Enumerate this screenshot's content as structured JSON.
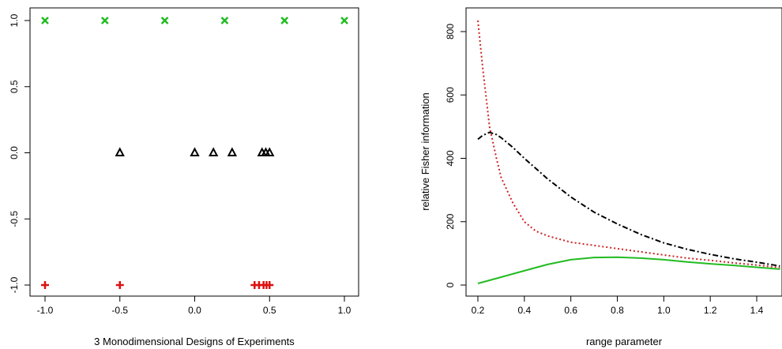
{
  "chart_data": [
    {
      "type": "scatter",
      "xlabel": "3 Monodimensional Designs of Experiments",
      "ylabel": "",
      "xlim": [
        -1.0,
        1.0
      ],
      "ylim": [
        -1.0,
        1.0
      ],
      "xticks": [
        "-1.0",
        "-0.5",
        "0.0",
        "0.5",
        "1.0"
      ],
      "yticks": [
        "-1.0",
        "-0.5",
        "0.0",
        "0.5",
        "1.0"
      ],
      "grid": false,
      "series": [
        {
          "marker": "x",
          "color": "#22bb22",
          "x": [
            -1.0,
            -0.6,
            -0.2,
            0.2,
            0.6,
            1.0
          ],
          "y": [
            1,
            1,
            1,
            1,
            1,
            1
          ]
        },
        {
          "marker": "triangle",
          "color": "#000000",
          "x": [
            -0.5,
            0.0,
            0.125,
            0.25,
            0.45,
            0.475,
            0.5
          ],
          "y": [
            0,
            0,
            0,
            0,
            0,
            0,
            0
          ]
        },
        {
          "marker": "plus",
          "color": "#dd1111",
          "x": [
            -1.0,
            -0.5,
            0.4,
            0.43,
            0.46,
            0.48,
            0.5
          ],
          "y": [
            -1,
            -1,
            -1,
            -1,
            -1,
            -1,
            -1
          ]
        }
      ]
    },
    {
      "type": "line",
      "xlabel": "range parameter",
      "ylabel": "relative Fisher information",
      "xlim": [
        0.2,
        1.5
      ],
      "ylim": [
        0,
        850
      ],
      "xticks": [
        "0.2",
        "0.4",
        "0.6",
        "0.8",
        "1.0",
        "1.2",
        "1.4"
      ],
      "yticks": [
        "0",
        "200",
        "400",
        "600",
        "800"
      ],
      "grid": false,
      "series": [
        {
          "style": "dotted",
          "color": "#cc2222",
          "x": [
            0.2,
            0.22,
            0.25,
            0.28,
            0.3,
            0.35,
            0.4,
            0.45,
            0.5,
            0.6,
            0.7,
            0.8,
            0.9,
            1.0,
            1.1,
            1.2,
            1.3,
            1.4,
            1.5
          ],
          "y": [
            835,
            690,
            500,
            400,
            340,
            260,
            200,
            170,
            155,
            135,
            125,
            115,
            105,
            95,
            85,
            78,
            70,
            63,
            55
          ]
        },
        {
          "style": "dashdot",
          "color": "#000000",
          "x": [
            0.2,
            0.22,
            0.25,
            0.28,
            0.3,
            0.35,
            0.4,
            0.5,
            0.6,
            0.7,
            0.8,
            0.9,
            1.0,
            1.1,
            1.2,
            1.3,
            1.4,
            1.5
          ],
          "y": [
            460,
            472,
            482,
            475,
            465,
            435,
            400,
            335,
            278,
            230,
            193,
            160,
            133,
            113,
            97,
            83,
            72,
            60
          ]
        },
        {
          "style": "solid",
          "color": "#22bb22",
          "x": [
            0.2,
            0.3,
            0.4,
            0.5,
            0.6,
            0.7,
            0.8,
            0.9,
            1.0,
            1.1,
            1.2,
            1.3,
            1.4,
            1.5
          ],
          "y": [
            5,
            25,
            45,
            65,
            80,
            87,
            88,
            85,
            80,
            73,
            67,
            62,
            56,
            50
          ]
        }
      ]
    }
  ]
}
